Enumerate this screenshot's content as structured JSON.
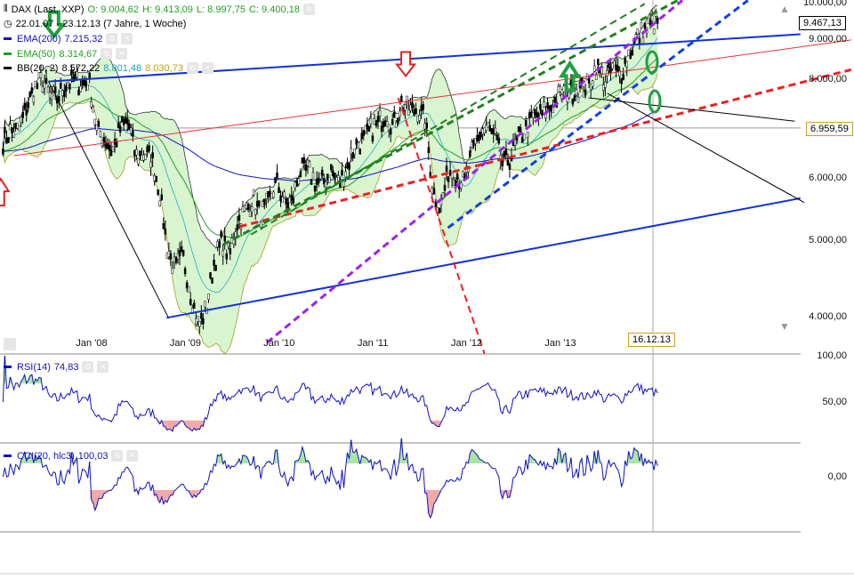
{
  "header": {
    "symbol": "DAX (Last, XXP)",
    "open": "O: 9.004,62",
    "high": "H: 9.413,09",
    "low": "L: 8.997,75",
    "close": "C: 9.400,18",
    "range": "22.01.07 - 23.12.13 (7 Jahre, 1 Woche)"
  },
  "indicators": {
    "ema200": {
      "label": "EMA(200)",
      "value": "7.215,32",
      "color": "#1010c0"
    },
    "ema50": {
      "label": "EMA(50)",
      "value": "8.314,67",
      "color": "#20a020"
    },
    "bb": {
      "label": "BB(20, 2)",
      "mid": "8.572,22",
      "upper": "8.801,48",
      "lower": "8.030,73"
    },
    "rsi": {
      "label": "RSI(14)",
      "value": "74,83"
    },
    "cci": {
      "label": "CCI(20, hlc3)",
      "value": "100,03"
    }
  },
  "price_tags": {
    "last": "9.467,13",
    "level": "6.959,59",
    "cursor_date": "16.12.13"
  },
  "chart_data": {
    "type": "candlestick",
    "scale": "log",
    "ylim": [
      3700,
      10000
    ],
    "y_ticks": [
      "10.000,00",
      "9.000,00",
      "8.000,00",
      "6.000,00",
      "5.000,00",
      "4.000,00"
    ],
    "y_tick_values": [
      10000,
      9000,
      8000,
      6000,
      5000,
      4000
    ],
    "x_ticks": [
      "Jan '08",
      "Jan '09",
      "Jan '10",
      "Jan '11",
      "Jan '12",
      "Jan '13"
    ],
    "x_tick_years": [
      2008,
      2009,
      2010,
      2011,
      2012,
      2013
    ],
    "rsi_ticks": [
      "100,00",
      "50,00"
    ],
    "cci_ticks": [
      "0,00"
    ],
    "monthly_close_start": "2007-01",
    "monthly_close": [
      6700,
      6900,
      6900,
      7400,
      7800,
      8000,
      7600,
      7600,
      7900,
      8000,
      7900,
      8000,
      6900,
      6750,
      6500,
      6950,
      7100,
      6400,
      6450,
      6400,
      5800,
      4900,
      4600,
      4800,
      4300,
      3900,
      4100,
      4700,
      5000,
      4800,
      5300,
      5450,
      5650,
      5400,
      5600,
      5950,
      5600,
      5600,
      6150,
      6150,
      5950,
      5950,
      6150,
      5900,
      6200,
      6600,
      6700,
      6900,
      7050,
      7250,
      7000,
      7500,
      7300,
      7350,
      7150,
      5800,
      5500,
      6150,
      6100,
      5900,
      6450,
      6850,
      6950,
      6750,
      6250,
      6400,
      6750,
      6950,
      7200,
      7250,
      7400,
      7600,
      7750,
      7750,
      7800,
      7900,
      8350,
      7950,
      8300,
      8100,
      8600,
      9000,
      9250,
      9400
    ],
    "trendlines": [
      {
        "from": [
          2007.54,
          7970
        ],
        "to": [
          2015.56,
          9150
        ],
        "color": "#1030e0",
        "dash": false,
        "width": 2
      },
      {
        "from": [
          2008.8,
          4000
        ],
        "to": [
          2015.56,
          5670
        ],
        "color": "#1030e0",
        "dash": false,
        "width": 2
      },
      {
        "from": [
          2007.17,
          6420
        ],
        "to": [
          2016.1,
          9000
        ],
        "color": "#f03030",
        "dash": false,
        "width": 1
      },
      {
        "from": [
          2009.58,
          5220
        ],
        "to": [
          2016.1,
          8250
        ],
        "color": "#f02020",
        "dash": true,
        "width": 3
      },
      {
        "from": [
          2011.27,
          7600
        ],
        "to": [
          2012.19,
          3600
        ],
        "color": "#f02020",
        "dash": true,
        "width": 2
      },
      {
        "from": [
          2009.4,
          4950
        ],
        "to": [
          2014.25,
          10100
        ],
        "color": "#208020",
        "dash": true,
        "width": 3
      },
      {
        "from": [
          2009.7,
          5100
        ],
        "to": [
          2013.9,
          10000
        ],
        "color": "#208020",
        "dash": true,
        "width": 2
      },
      {
        "from": [
          2009.87,
          3720
        ],
        "to": [
          2014.3,
          10100
        ],
        "color": "#a020f0",
        "dash": true,
        "width": 3
      },
      {
        "from": [
          2011.8,
          5200
        ],
        "to": [
          2015.0,
          10100
        ],
        "color": "#1040e0",
        "dash": true,
        "width": 3
      },
      {
        "from": [
          2007.54,
          7970
        ],
        "to": [
          2008.82,
          4000
        ],
        "color": "#000",
        "dash": false,
        "width": 1
      },
      {
        "from": [
          2013.3,
          7600
        ],
        "to": [
          2015.5,
          7100
        ],
        "color": "#000",
        "dash": false,
        "width": 1
      },
      {
        "from": [
          2013.5,
          7700
        ],
        "to": [
          2015.6,
          5600
        ],
        "color": "#000",
        "dash": false,
        "width": 1
      }
    ],
    "arrows": [
      {
        "type": "up",
        "date": 2007.03,
        "price": 6000,
        "color": "#e02020"
      },
      {
        "type": "down",
        "date": 2011.35,
        "price": 8100,
        "color": "#e02020"
      },
      {
        "type": "down",
        "date": 2007.6,
        "price": 9100,
        "color": "#20a040"
      },
      {
        "type": "up",
        "date": 2013.1,
        "price": 8400,
        "color": "#20a040"
      }
    ]
  }
}
